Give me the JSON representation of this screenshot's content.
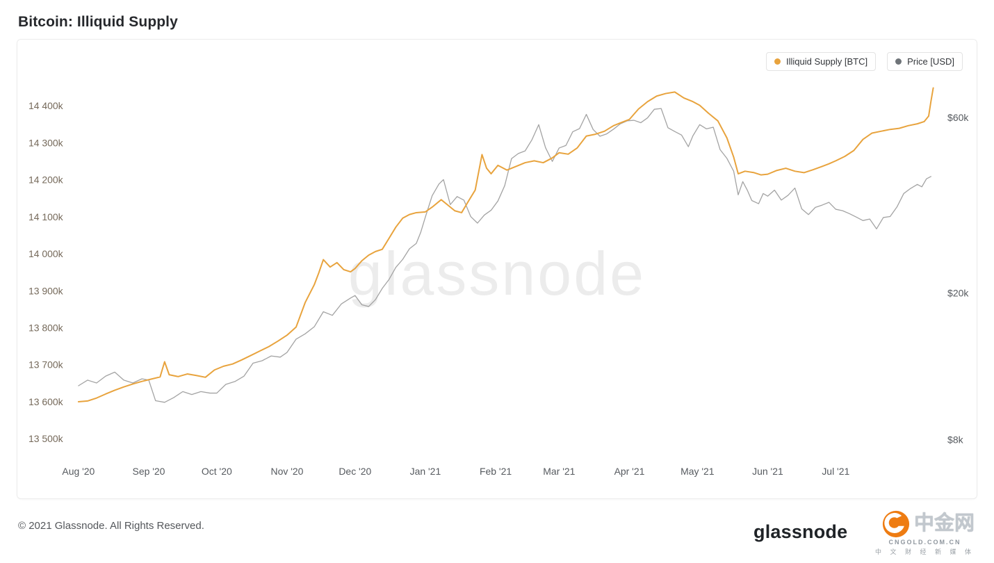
{
  "page": {
    "title": "Bitcoin: Illiquid Supply"
  },
  "legend": [
    {
      "label": "Illiquid Supply [BTC]",
      "color": "#e8a33d"
    },
    {
      "label": "Price [USD]",
      "color": "#6f7479"
    }
  ],
  "watermark": "glassnode",
  "footer": {
    "copyright": "© 2021 Glassnode. All Rights Reserved.",
    "brand": "glassnode"
  },
  "cngold": {
    "name": "中金网",
    "domain": "CNGOLD.COM.CN",
    "tagline": "中 文 财 经 新 媒 体"
  },
  "chart_data": {
    "type": "line",
    "title": "Bitcoin: Illiquid Supply",
    "grid": false,
    "legend_position": "top-right",
    "x_unit": "days since 2020-08-01",
    "x_domain": [
      0,
      379
    ],
    "x_ticks": [
      {
        "day": 0,
        "label": "Aug '20"
      },
      {
        "day": 31,
        "label": "Sep '20"
      },
      {
        "day": 61,
        "label": "Oct '20"
      },
      {
        "day": 92,
        "label": "Nov '20"
      },
      {
        "day": 122,
        "label": "Dec '20"
      },
      {
        "day": 153,
        "label": "Jan '21"
      },
      {
        "day": 184,
        "label": "Feb '21"
      },
      {
        "day": 212,
        "label": "Mar '21"
      },
      {
        "day": 243,
        "label": "Apr '21"
      },
      {
        "day": 273,
        "label": "May '21"
      },
      {
        "day": 304,
        "label": "Jun '21"
      },
      {
        "day": 334,
        "label": "Jul '21"
      }
    ],
    "left_axis": {
      "label": "Illiquid Supply [BTC]",
      "scale": "linear",
      "unit": "k BTC",
      "domain": [
        13470,
        14470
      ],
      "color": "#75695a",
      "ticks": [
        {
          "v": 13500,
          "label": "13 500k"
        },
        {
          "v": 13600,
          "label": "13 600k"
        },
        {
          "v": 13700,
          "label": "13 700k"
        },
        {
          "v": 13800,
          "label": "13 800k"
        },
        {
          "v": 13900,
          "label": "13 900k"
        },
        {
          "v": 14000,
          "label": "14 000k"
        },
        {
          "v": 14100,
          "label": "14 100k"
        },
        {
          "v": 14200,
          "label": "14 200k"
        },
        {
          "v": 14300,
          "label": "14 300k"
        },
        {
          "v": 14400,
          "label": "14 400k"
        }
      ]
    },
    "right_axis": {
      "label": "Price [USD]",
      "scale": "log",
      "unit": "k USD",
      "domain": [
        7.5,
        76
      ],
      "color": "#55595e",
      "ticks": [
        {
          "v": 8,
          "label": "$8k"
        },
        {
          "v": 20,
          "label": "$20k"
        },
        {
          "v": 60,
          "label": "$60k"
        }
      ]
    },
    "series": [
      {
        "name": "Illiquid Supply [BTC]",
        "axis": "left",
        "color": "#e8a33d",
        "width": 2,
        "points": [
          [
            0,
            13600
          ],
          [
            4,
            13602
          ],
          [
            8,
            13610
          ],
          [
            12,
            13621
          ],
          [
            16,
            13631
          ],
          [
            20,
            13640
          ],
          [
            24,
            13648
          ],
          [
            28,
            13655
          ],
          [
            32,
            13661
          ],
          [
            36,
            13667
          ],
          [
            38,
            13708
          ],
          [
            40,
            13673
          ],
          [
            44,
            13668
          ],
          [
            48,
            13675
          ],
          [
            52,
            13671
          ],
          [
            56,
            13666
          ],
          [
            60,
            13686
          ],
          [
            64,
            13696
          ],
          [
            68,
            13702
          ],
          [
            72,
            13713
          ],
          [
            76,
            13725
          ],
          [
            80,
            13737
          ],
          [
            84,
            13749
          ],
          [
            88,
            13764
          ],
          [
            92,
            13780
          ],
          [
            96,
            13802
          ],
          [
            100,
            13868
          ],
          [
            104,
            13916
          ],
          [
            106,
            13948
          ],
          [
            108,
            13984
          ],
          [
            111,
            13964
          ],
          [
            114,
            13976
          ],
          [
            117,
            13957
          ],
          [
            120,
            13951
          ],
          [
            122,
            13960
          ],
          [
            125,
            13981
          ],
          [
            128,
            13996
          ],
          [
            131,
            14006
          ],
          [
            134,
            14012
          ],
          [
            137,
            14042
          ],
          [
            140,
            14072
          ],
          [
            143,
            14096
          ],
          [
            146,
            14106
          ],
          [
            149,
            14111
          ],
          [
            153,
            14113
          ],
          [
            156,
            14126
          ],
          [
            160,
            14146
          ],
          [
            163,
            14131
          ],
          [
            166,
            14116
          ],
          [
            169,
            14111
          ],
          [
            172,
            14142
          ],
          [
            175,
            14172
          ],
          [
            178,
            14268
          ],
          [
            180,
            14231
          ],
          [
            182,
            14216
          ],
          [
            185,
            14239
          ],
          [
            189,
            14226
          ],
          [
            193,
            14236
          ],
          [
            197,
            14246
          ],
          [
            201,
            14251
          ],
          [
            205,
            14246
          ],
          [
            209,
            14259
          ],
          [
            212,
            14273
          ],
          [
            216,
            14269
          ],
          [
            220,
            14286
          ],
          [
            224,
            14318
          ],
          [
            228,
            14323
          ],
          [
            232,
            14331
          ],
          [
            236,
            14346
          ],
          [
            240,
            14356
          ],
          [
            243,
            14363
          ],
          [
            247,
            14391
          ],
          [
            251,
            14411
          ],
          [
            255,
            14426
          ],
          [
            259,
            14433
          ],
          [
            263,
            14437
          ],
          [
            267,
            14421
          ],
          [
            271,
            14411
          ],
          [
            274,
            14401
          ],
          [
            278,
            14379
          ],
          [
            282,
            14359
          ],
          [
            286,
            14313
          ],
          [
            289,
            14261
          ],
          [
            291,
            14216
          ],
          [
            294,
            14223
          ],
          [
            298,
            14219
          ],
          [
            301,
            14213
          ],
          [
            304,
            14215
          ],
          [
            308,
            14225
          ],
          [
            312,
            14231
          ],
          [
            316,
            14223
          ],
          [
            320,
            14219
          ],
          [
            324,
            14227
          ],
          [
            328,
            14236
          ],
          [
            331,
            14243
          ],
          [
            334,
            14251
          ],
          [
            338,
            14263
          ],
          [
            342,
            14279
          ],
          [
            346,
            14309
          ],
          [
            350,
            14326
          ],
          [
            354,
            14331
          ],
          [
            358,
            14336
          ],
          [
            362,
            14339
          ],
          [
            366,
            14346
          ],
          [
            370,
            14351
          ],
          [
            373,
            14357
          ],
          [
            375,
            14372
          ],
          [
            376,
            14412
          ],
          [
            377,
            14448
          ]
        ]
      },
      {
        "name": "Price [USD]",
        "axis": "right",
        "color": "#a3a3a3",
        "width": 1.3,
        "points": [
          [
            0,
            11.2
          ],
          [
            4,
            11.6
          ],
          [
            8,
            11.4
          ],
          [
            12,
            11.9
          ],
          [
            16,
            12.2
          ],
          [
            20,
            11.6
          ],
          [
            24,
            11.4
          ],
          [
            28,
            11.7
          ],
          [
            31,
            11.6
          ],
          [
            34,
            10.2
          ],
          [
            38,
            10.1
          ],
          [
            42,
            10.4
          ],
          [
            46,
            10.8
          ],
          [
            50,
            10.6
          ],
          [
            54,
            10.8
          ],
          [
            58,
            10.7
          ],
          [
            61,
            10.7
          ],
          [
            65,
            11.3
          ],
          [
            69,
            11.5
          ],
          [
            73,
            11.9
          ],
          [
            77,
            12.9
          ],
          [
            81,
            13.1
          ],
          [
            85,
            13.5
          ],
          [
            89,
            13.4
          ],
          [
            92,
            13.8
          ],
          [
            96,
            15.0
          ],
          [
            100,
            15.5
          ],
          [
            104,
            16.2
          ],
          [
            108,
            17.8
          ],
          [
            112,
            17.4
          ],
          [
            116,
            18.7
          ],
          [
            120,
            19.4
          ],
          [
            122,
            19.7
          ],
          [
            125,
            18.6
          ],
          [
            128,
            18.4
          ],
          [
            131,
            19.2
          ],
          [
            134,
            20.6
          ],
          [
            137,
            21.8
          ],
          [
            140,
            23.5
          ],
          [
            143,
            24.7
          ],
          [
            146,
            26.4
          ],
          [
            149,
            27.3
          ],
          [
            151,
            29.3
          ],
          [
            153,
            32.2
          ],
          [
            156,
            36.8
          ],
          [
            159,
            39.6
          ],
          [
            161,
            40.7
          ],
          [
            164,
            34.8
          ],
          [
            167,
            36.6
          ],
          [
            170,
            35.8
          ],
          [
            173,
            32.3
          ],
          [
            176,
            31.0
          ],
          [
            179,
            32.6
          ],
          [
            182,
            33.6
          ],
          [
            185,
            35.6
          ],
          [
            188,
            39.2
          ],
          [
            191,
            46.4
          ],
          [
            194,
            47.9
          ],
          [
            197,
            48.7
          ],
          [
            200,
            52.2
          ],
          [
            203,
            57.4
          ],
          [
            206,
            49.7
          ],
          [
            209,
            45.6
          ],
          [
            212,
            49.6
          ],
          [
            215,
            50.4
          ],
          [
            218,
            54.9
          ],
          [
            221,
            56.0
          ],
          [
            224,
            61.2
          ],
          [
            227,
            55.7
          ],
          [
            230,
            53.4
          ],
          [
            233,
            54.2
          ],
          [
            236,
            55.8
          ],
          [
            239,
            57.7
          ],
          [
            242,
            58.8
          ],
          [
            245,
            59.0
          ],
          [
            248,
            58.1
          ],
          [
            251,
            59.9
          ],
          [
            254,
            63.2
          ],
          [
            257,
            63.5
          ],
          [
            260,
            56.3
          ],
          [
            263,
            55.0
          ],
          [
            266,
            53.8
          ],
          [
            269,
            50.0
          ],
          [
            271,
            53.5
          ],
          [
            274,
            57.4
          ],
          [
            277,
            55.9
          ],
          [
            280,
            56.5
          ],
          [
            283,
            49.1
          ],
          [
            286,
            46.5
          ],
          [
            289,
            42.9
          ],
          [
            291,
            37.0
          ],
          [
            293,
            40.2
          ],
          [
            295,
            38.1
          ],
          [
            297,
            35.7
          ],
          [
            300,
            35.0
          ],
          [
            302,
            37.3
          ],
          [
            304,
            36.7
          ],
          [
            307,
            38.1
          ],
          [
            310,
            35.8
          ],
          [
            313,
            36.9
          ],
          [
            316,
            38.6
          ],
          [
            319,
            33.9
          ],
          [
            322,
            32.7
          ],
          [
            325,
            34.2
          ],
          [
            328,
            34.7
          ],
          [
            331,
            35.3
          ],
          [
            334,
            33.8
          ],
          [
            337,
            33.5
          ],
          [
            340,
            32.9
          ],
          [
            343,
            32.2
          ],
          [
            346,
            31.5
          ],
          [
            349,
            31.8
          ],
          [
            352,
            29.9
          ],
          [
            355,
            32.1
          ],
          [
            358,
            32.3
          ],
          [
            361,
            34.3
          ],
          [
            364,
            37.3
          ],
          [
            367,
            38.5
          ],
          [
            370,
            39.5
          ],
          [
            372,
            38.9
          ],
          [
            374,
            40.9
          ],
          [
            376,
            41.5
          ]
        ]
      }
    ]
  }
}
